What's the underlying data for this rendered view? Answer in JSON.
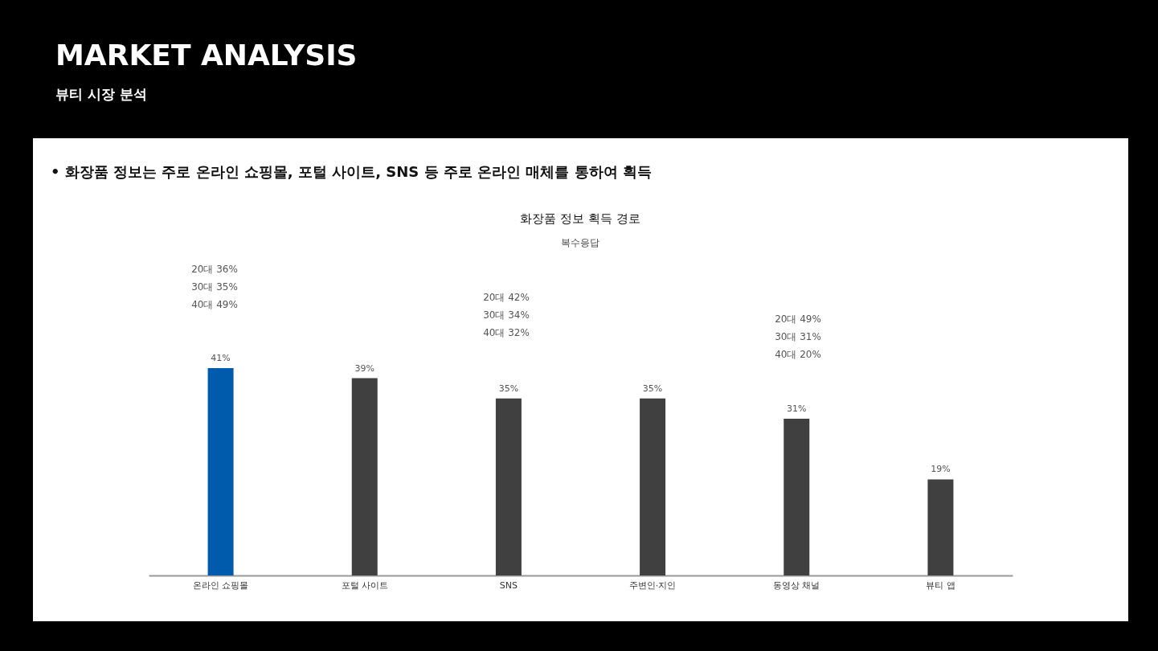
{
  "chart_data": {
    "type": "bar",
    "title": "화장품 정보 획득 경로",
    "subtitle": "복수응답",
    "categories": [
      "온라인 쇼핑몰",
      "포털 사이트",
      "SNS",
      "주변인·지인",
      "동영상 채널",
      "뷰티 앱"
    ],
    "values": [
      41,
      39,
      35,
      35,
      31,
      19
    ],
    "colors": [
      "#005bac",
      "#404040",
      "#404040",
      "#404040",
      "#404040",
      "#404040"
    ],
    "value_labels": [
      "41%",
      "39%",
      "35%",
      "35%",
      "31%",
      "19%"
    ],
    "annotations": [
      "MARKET ANALYSIS",
      "뷰티 시장 분석",
      "• 화장품 정보는 주로 온라인 쇼핑몰, 포털 사이트, SNS 등 주로 온라인 매체를 통하여 획득",
      "20대 36%\n30대 35%\n40대 49%",
      "20대 42%\n30대 34%\n40대 32%",
      "20대 49%\n30대 31%\n40대 20%"
    ]
  }
}
